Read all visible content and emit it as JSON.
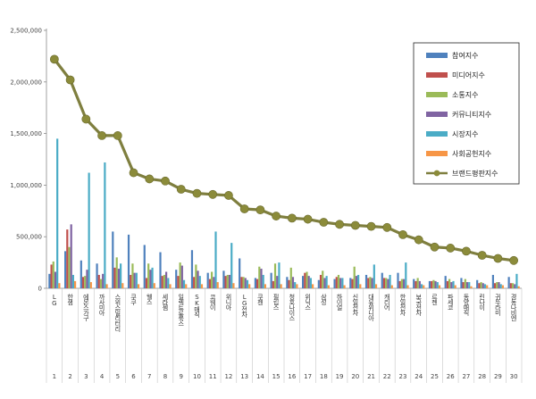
{
  "chart_data": {
    "type": "bar",
    "title": "",
    "xlabel": "",
    "ylabel": "",
    "ylim": [
      0,
      2500000
    ],
    "yticks": [
      0,
      500000,
      1000000,
      1500000,
      2000000,
      2500000
    ],
    "ytick_labels": [
      "0",
      "500,000",
      "1,000,000",
      "1,500,000",
      "2,000,000",
      "2,500,000"
    ],
    "grid": false,
    "legend_position": "top-right",
    "indices": [
      "1",
      "2",
      "3",
      "4",
      "5",
      "6",
      "7",
      "8",
      "9",
      "10",
      "11",
      "12",
      "13",
      "14",
      "15",
      "16",
      "17",
      "18",
      "19",
      "20",
      "21",
      "22",
      "23",
      "24",
      "25",
      "26",
      "27",
      "28",
      "29",
      "30"
    ],
    "categories": [
      "LG",
      "한샘",
      "에몬스가구",
      "까사미아",
      "스위스밀리터리",
      "쿠쿠",
      "웰스",
      "세라젬",
      "일렉트로룩스",
      "SK매직",
      "코웨이",
      "위니아",
      "LG전자",
      "쿠첸",
      "필립스",
      "청호나이스",
      "위닉스",
      "삼성",
      "하이얼",
      "신일전자",
      "대유위니아",
      "캐리어",
      "한일전자",
      "보국전자",
      "르젠",
      "파세코",
      "동양매직",
      "린나이",
      "귀뚜라미",
      "경동나비엔"
    ],
    "series": [
      {
        "name": "참여지수",
        "color": "#4f81bd",
        "values": [
          140000,
          360000,
          270000,
          240000,
          550000,
          520000,
          420000,
          350000,
          180000,
          370000,
          150000,
          170000,
          290000,
          100000,
          150000,
          110000,
          120000,
          80000,
          90000,
          100000,
          130000,
          150000,
          150000,
          90000,
          70000,
          120000,
          100000,
          80000,
          130000,
          110000
        ]
      },
      {
        "name": "미디어지수",
        "color": "#c0504d",
        "values": [
          230000,
          570000,
          110000,
          130000,
          200000,
          130000,
          100000,
          120000,
          120000,
          110000,
          90000,
          120000,
          110000,
          90000,
          70000,
          80000,
          150000,
          130000,
          110000,
          90000,
          100000,
          100000,
          70000,
          70000,
          70000,
          70000,
          60000,
          50000,
          50000,
          50000
        ]
      },
      {
        "name": "소통지수",
        "color": "#9bbb59",
        "values": [
          260000,
          400000,
          120000,
          90000,
          300000,
          240000,
          240000,
          130000,
          250000,
          230000,
          160000,
          130000,
          110000,
          210000,
          240000,
          200000,
          160000,
          170000,
          130000,
          210000,
          110000,
          100000,
          90000,
          100000,
          80000,
          90000,
          90000,
          60000,
          60000,
          50000
        ]
      },
      {
        "name": "커뮤니티지수",
        "color": "#8064a2",
        "values": [
          160000,
          620000,
          180000,
          140000,
          190000,
          150000,
          180000,
          160000,
          220000,
          170000,
          110000,
          130000,
          100000,
          190000,
          120000,
          110000,
          120000,
          100000,
          100000,
          120000,
          100000,
          90000,
          90000,
          70000,
          70000,
          60000,
          60000,
          50000,
          60000,
          40000
        ]
      },
      {
        "name": "시장지수",
        "color": "#4bacc6",
        "values": [
          1450000,
          130000,
          1120000,
          1220000,
          240000,
          150000,
          200000,
          100000,
          80000,
          120000,
          550000,
          440000,
          80000,
          130000,
          250000,
          60000,
          100000,
          120000,
          100000,
          130000,
          230000,
          130000,
          250000,
          40000,
          60000,
          70000,
          60000,
          40000,
          40000,
          140000
        ]
      },
      {
        "name": "사회공헌지수",
        "color": "#f79646",
        "values": [
          50000,
          70000,
          60000,
          40000,
          50000,
          40000,
          50000,
          40000,
          40000,
          40000,
          60000,
          50000,
          40000,
          40000,
          40000,
          40000,
          40000,
          30000,
          30000,
          40000,
          40000,
          30000,
          30000,
          30000,
          30000,
          30000,
          20000,
          30000,
          30000,
          20000
        ]
      }
    ],
    "line_series": {
      "name": "브랜드평판지수",
      "color": "#7f7f3f",
      "marker_color": "#8b8b3a",
      "values": [
        2220000,
        2020000,
        1640000,
        1480000,
        1480000,
        1120000,
        1060000,
        1040000,
        960000,
        920000,
        910000,
        900000,
        770000,
        760000,
        700000,
        680000,
        670000,
        640000,
        620000,
        610000,
        600000,
        590000,
        520000,
        470000,
        400000,
        390000,
        360000,
        320000,
        290000,
        270000
      ]
    }
  }
}
